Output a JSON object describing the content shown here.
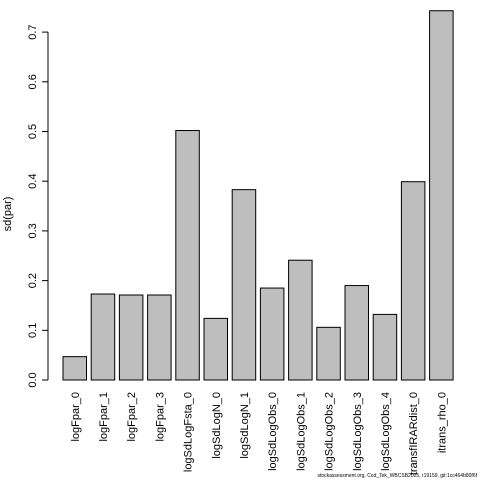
{
  "chart_data": {
    "type": "bar",
    "title": "",
    "xlabel": "",
    "ylabel": "sd(par)",
    "ylim": [
      0,
      0.75
    ],
    "yticks": [
      0.0,
      0.1,
      0.2,
      0.3,
      0.4,
      0.5,
      0.6,
      0.7
    ],
    "ytick_labels": [
      "0.0",
      "0.1",
      "0.2",
      "0.3",
      "0.4",
      "0.5",
      "0.6",
      "0.7"
    ],
    "grid": false,
    "legend": "none",
    "bar_color": "#bebebe",
    "categories": [
      "logFpar_0",
      "logFpar_1",
      "logFpar_2",
      "logFpar_3",
      "logSdLogFsta_0",
      "logSdLogN_0",
      "logSdLogN_1",
      "logSdLogObs_0",
      "logSdLogObs_1",
      "logSdLogObs_2",
      "logSdLogObs_3",
      "logSdLogObs_4",
      "transfIRARdist_0",
      "itrans_rho_0"
    ],
    "values": [
      0.047,
      0.173,
      0.171,
      0.171,
      0.502,
      0.124,
      0.383,
      0.185,
      0.241,
      0.106,
      0.19,
      0.132,
      0.399,
      0.743
    ]
  },
  "footnote": "stockassessment.org, Cod_Tek_WBCSB2025, r19159, git:1cc464b80f6f"
}
